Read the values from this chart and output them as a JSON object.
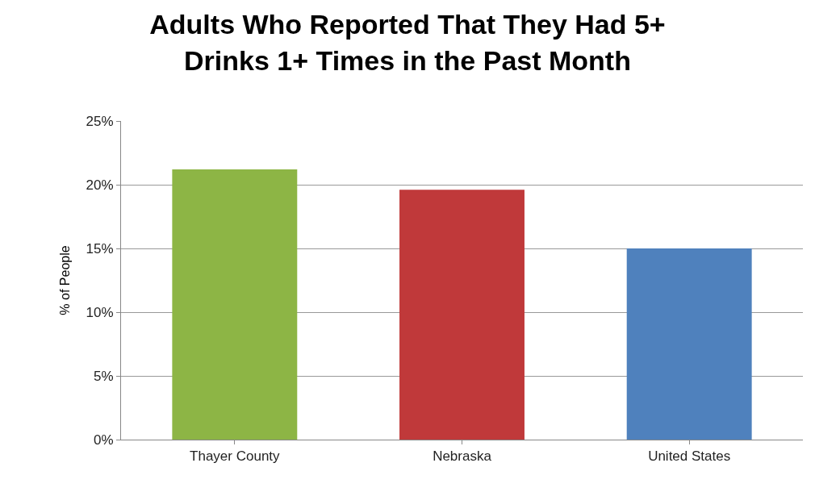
{
  "chart_data": {
    "type": "bar",
    "title": "Adults Who Reported That They Had 5+\nDrinks 1+ Times in the Past Month",
    "ylabel": "% of People",
    "categories": [
      "Thayer County",
      "Nebraska",
      "United States"
    ],
    "values": [
      21.2,
      19.6,
      15.0
    ],
    "colors": [
      "#8db545",
      "#c0393a",
      "#4f81bd"
    ],
    "ylim": [
      0,
      25
    ],
    "yticks": [
      {
        "value": 0,
        "label": "0%"
      },
      {
        "value": 5,
        "label": "5%"
      },
      {
        "value": 10,
        "label": "10%"
      },
      {
        "value": 15,
        "label": "15%"
      },
      {
        "value": 20,
        "label": "20%"
      },
      {
        "value": 25,
        "label": "25%"
      }
    ],
    "grid": "y"
  }
}
